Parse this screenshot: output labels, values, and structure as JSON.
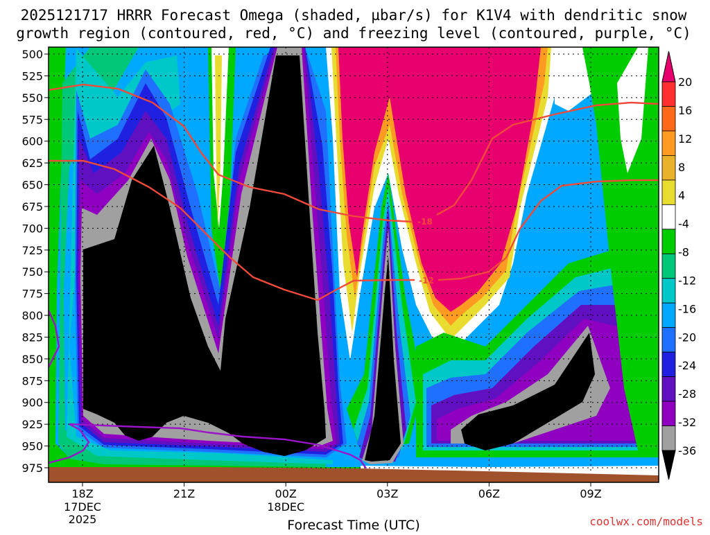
{
  "chart_data": {
    "type": "heatmap",
    "title_line1": "2025121717 HRRR Forecast Omega (shaded, µbar/s) for K1V4 with dendritic snow",
    "title_line2": "growth region (contoured, red, °C) and freezing level (contoured, purple, °C)",
    "xlabel": "Forecast Time (UTC)",
    "watermark": "coolwx.com/models",
    "y_ticks": [
      "500",
      "525",
      "550",
      "575",
      "600",
      "625",
      "650",
      "675",
      "700",
      "725",
      "750",
      "775",
      "800",
      "825",
      "850",
      "875",
      "900",
      "925",
      "950",
      "975"
    ],
    "x_ticks": [
      {
        "label": "18Z",
        "sub1": "17DEC",
        "sub2": "2025"
      },
      {
        "label": "21Z",
        "sub1": "",
        "sub2": ""
      },
      {
        "label": "00Z",
        "sub1": "18DEC",
        "sub2": ""
      },
      {
        "label": "03Z",
        "sub1": "",
        "sub2": ""
      },
      {
        "label": "06Z",
        "sub1": "",
        "sub2": ""
      },
      {
        "label": "09Z",
        "sub1": "",
        "sub2": ""
      }
    ],
    "colorbar": {
      "labels": [
        "20",
        "16",
        "12",
        "8",
        "4",
        "-4",
        "-8",
        "-12",
        "-16",
        "-20",
        "-24",
        "-28",
        "-32",
        "-36"
      ],
      "colors": [
        "#e8006e",
        "#ff3030",
        "#ff6a1a",
        "#ff9a22",
        "#e8b22a",
        "#e8dc30",
        "#ffffff",
        "#00cc00",
        "#00c878",
        "#00c8c8",
        "#00a8ff",
        "#2070ff",
        "#2020e0",
        "#6010c0",
        "#9000c0",
        "#a0a0a0",
        "#000000"
      ]
    },
    "isotherms": [
      {
        "label": "-18",
        "color": "#ef4a3a"
      },
      {
        "label": "-12",
        "color": "#ef4a3a"
      }
    ],
    "freezing_level_color": "#9a14c8",
    "ground_color": "#a0522d"
  }
}
